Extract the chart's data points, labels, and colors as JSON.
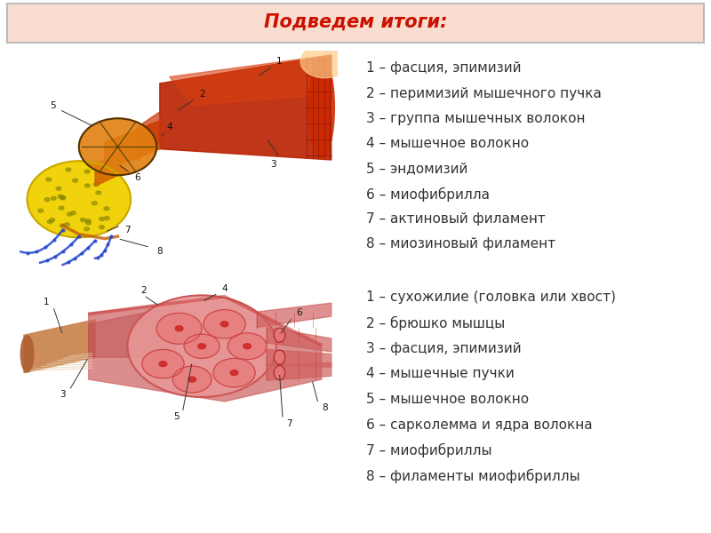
{
  "title": "Подведем итоги:",
  "title_color": "#cc1100",
  "title_bg": "#f8ddd0",
  "title_border": "#bbbbbb",
  "bg_color": "#ffffff",
  "panel1_bg": "#ffffff",
  "panel2_bg": "#f8f5cc",
  "list1": [
    "1 – фасция, эпимизий",
    "2 – перимизий мышечного пучка",
    "3 – группа мышечных волокон",
    "4 – мышечное волокно",
    "5 – эндомизий",
    "6 – миофибрилла",
    "7 – актиновый филамент",
    "8 – миозиновый филамент"
  ],
  "list2": [
    "1 – сухожилие (головка или хвост)",
    "2 – брюшко мышцы",
    "3 – фасция, эпимизий",
    "4 – мышечные пучки",
    "5 – мышечное волокно",
    "6 – сарколемма и ядра волокна",
    "7 – миофибриллы",
    "8 – филаменты миофибриллы"
  ],
  "text_color": "#333333",
  "text_fontsize": 11.0,
  "title_fontsize": 15
}
